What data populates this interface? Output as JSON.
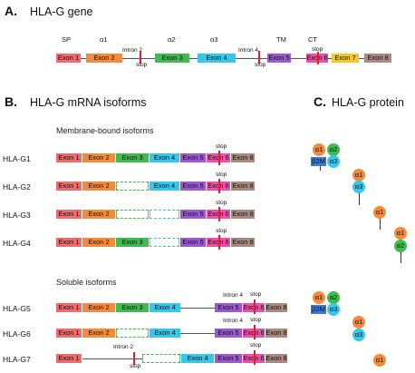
{
  "panels": {
    "a": "A.",
    "b": "B.",
    "c": "C."
  },
  "titles": {
    "gene": "HLA-G gene",
    "mrna": "HLA-G mRNA isoforms",
    "protein": "HLA-G protein",
    "membrane": "Membrane-bound isoforms",
    "soluble": "Soluble isoforms"
  },
  "gene_labels": {
    "sp": "SP",
    "a1": "α1",
    "a2": "α2",
    "a3": "α3",
    "tm": "TM",
    "ct": "CT",
    "intron2": "Intron 2",
    "intron4": "Intron 4",
    "stop": "stop"
  },
  "exon_names": [
    "Exon 1",
    "Exon 2",
    "Exon 3",
    "Exon 4",
    "Exon 5",
    "Exon 6",
    "Exon 7",
    "Exon 8"
  ],
  "exon_colors": {
    "e1": "#f06b6b",
    "e2": "#f28c3c",
    "e3": "#3dbb4e",
    "e4": "#36c7ea",
    "e5": "#9b59d0",
    "e6": "#ee4fa8",
    "e7": "#f2c82a",
    "e8": "#a88a7e"
  },
  "isoforms": [
    {
      "name": "HLA-G1",
      "mark": "stop"
    },
    {
      "name": "HLA-G2",
      "mark": "stop"
    },
    {
      "name": "HLA-G3",
      "mark": "stop"
    },
    {
      "name": "HLA-G4",
      "mark": "stop"
    },
    {
      "name": "HLA-G5",
      "intron": "Intron 4",
      "mark": "stop"
    },
    {
      "name": "HLA-G6",
      "intron": "Intron 4",
      "mark": "stop"
    },
    {
      "name": "HLA-G7",
      "intron": "Intron 2",
      "mark": "stop",
      "mark2": "stop"
    }
  ],
  "domains": {
    "a1": "α1",
    "a2": "α2",
    "a3": "α3",
    "b2m": "β2M"
  },
  "domain_colors": {
    "a1": "#f28c3c",
    "a2": "#3dbb4e",
    "a3": "#36c7ea",
    "b2m": "#3f7bd0"
  }
}
